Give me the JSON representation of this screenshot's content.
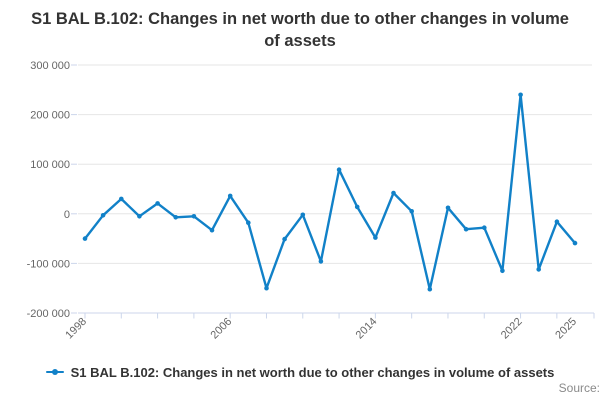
{
  "title": "S1 BAL B.102: Changes in net worth due to other changes in volume of assets",
  "legend": {
    "label": "S1 BAL B.102: Changes in net worth due to other changes in volume of assets"
  },
  "credits": "Source:",
  "colors": {
    "series": "#1181c8",
    "grid": "#e6e6e6",
    "axis": "#ccd6eb",
    "tick_label": "#666666",
    "title": "#333333",
    "legend_text": "#333333",
    "credits_text": "#8a8a8a"
  },
  "chart_data": {
    "type": "line",
    "title": "S1 BAL B.102: Changes in net worth due to other changes in volume of assets",
    "xlabel": "",
    "ylabel": "",
    "x": [
      1998,
      1999,
      2000,
      2001,
      2002,
      2003,
      2004,
      2005,
      2006,
      2007,
      2008,
      2009,
      2010,
      2011,
      2012,
      2013,
      2014,
      2015,
      2016,
      2017,
      2018,
      2019,
      2020,
      2021,
      2022,
      2023,
      2024,
      2025
    ],
    "values": [
      -50000,
      -3000,
      30000,
      -5000,
      21000,
      -7000,
      -5000,
      -33000,
      36000,
      -18000,
      -150000,
      -51000,
      -2000,
      -96000,
      89000,
      14000,
      -48000,
      42000,
      5000,
      -152000,
      12000,
      -31000,
      -28000,
      -115000,
      240000,
      -112000,
      -16000,
      -59000
    ],
    "ylim": [
      -200000,
      300000
    ],
    "ytick_step": 100000,
    "ytick_labels": [
      "300 000",
      "200 000",
      "100 000",
      "0",
      "-100 000",
      "-200 000"
    ],
    "xtick_years": [
      1998,
      2000,
      2002,
      2004,
      2006,
      2008,
      2010,
      2012,
      2014,
      2016,
      2018,
      2020,
      2022,
      2024
    ],
    "xtick_labels_shown": [
      "1998",
      "2006",
      "2014",
      "2022",
      "2025"
    ],
    "xlabel_years": [
      1998,
      2006,
      2014,
      2022,
      2025
    ],
    "grid": true,
    "legend_position": "bottom",
    "marker": "circle"
  }
}
